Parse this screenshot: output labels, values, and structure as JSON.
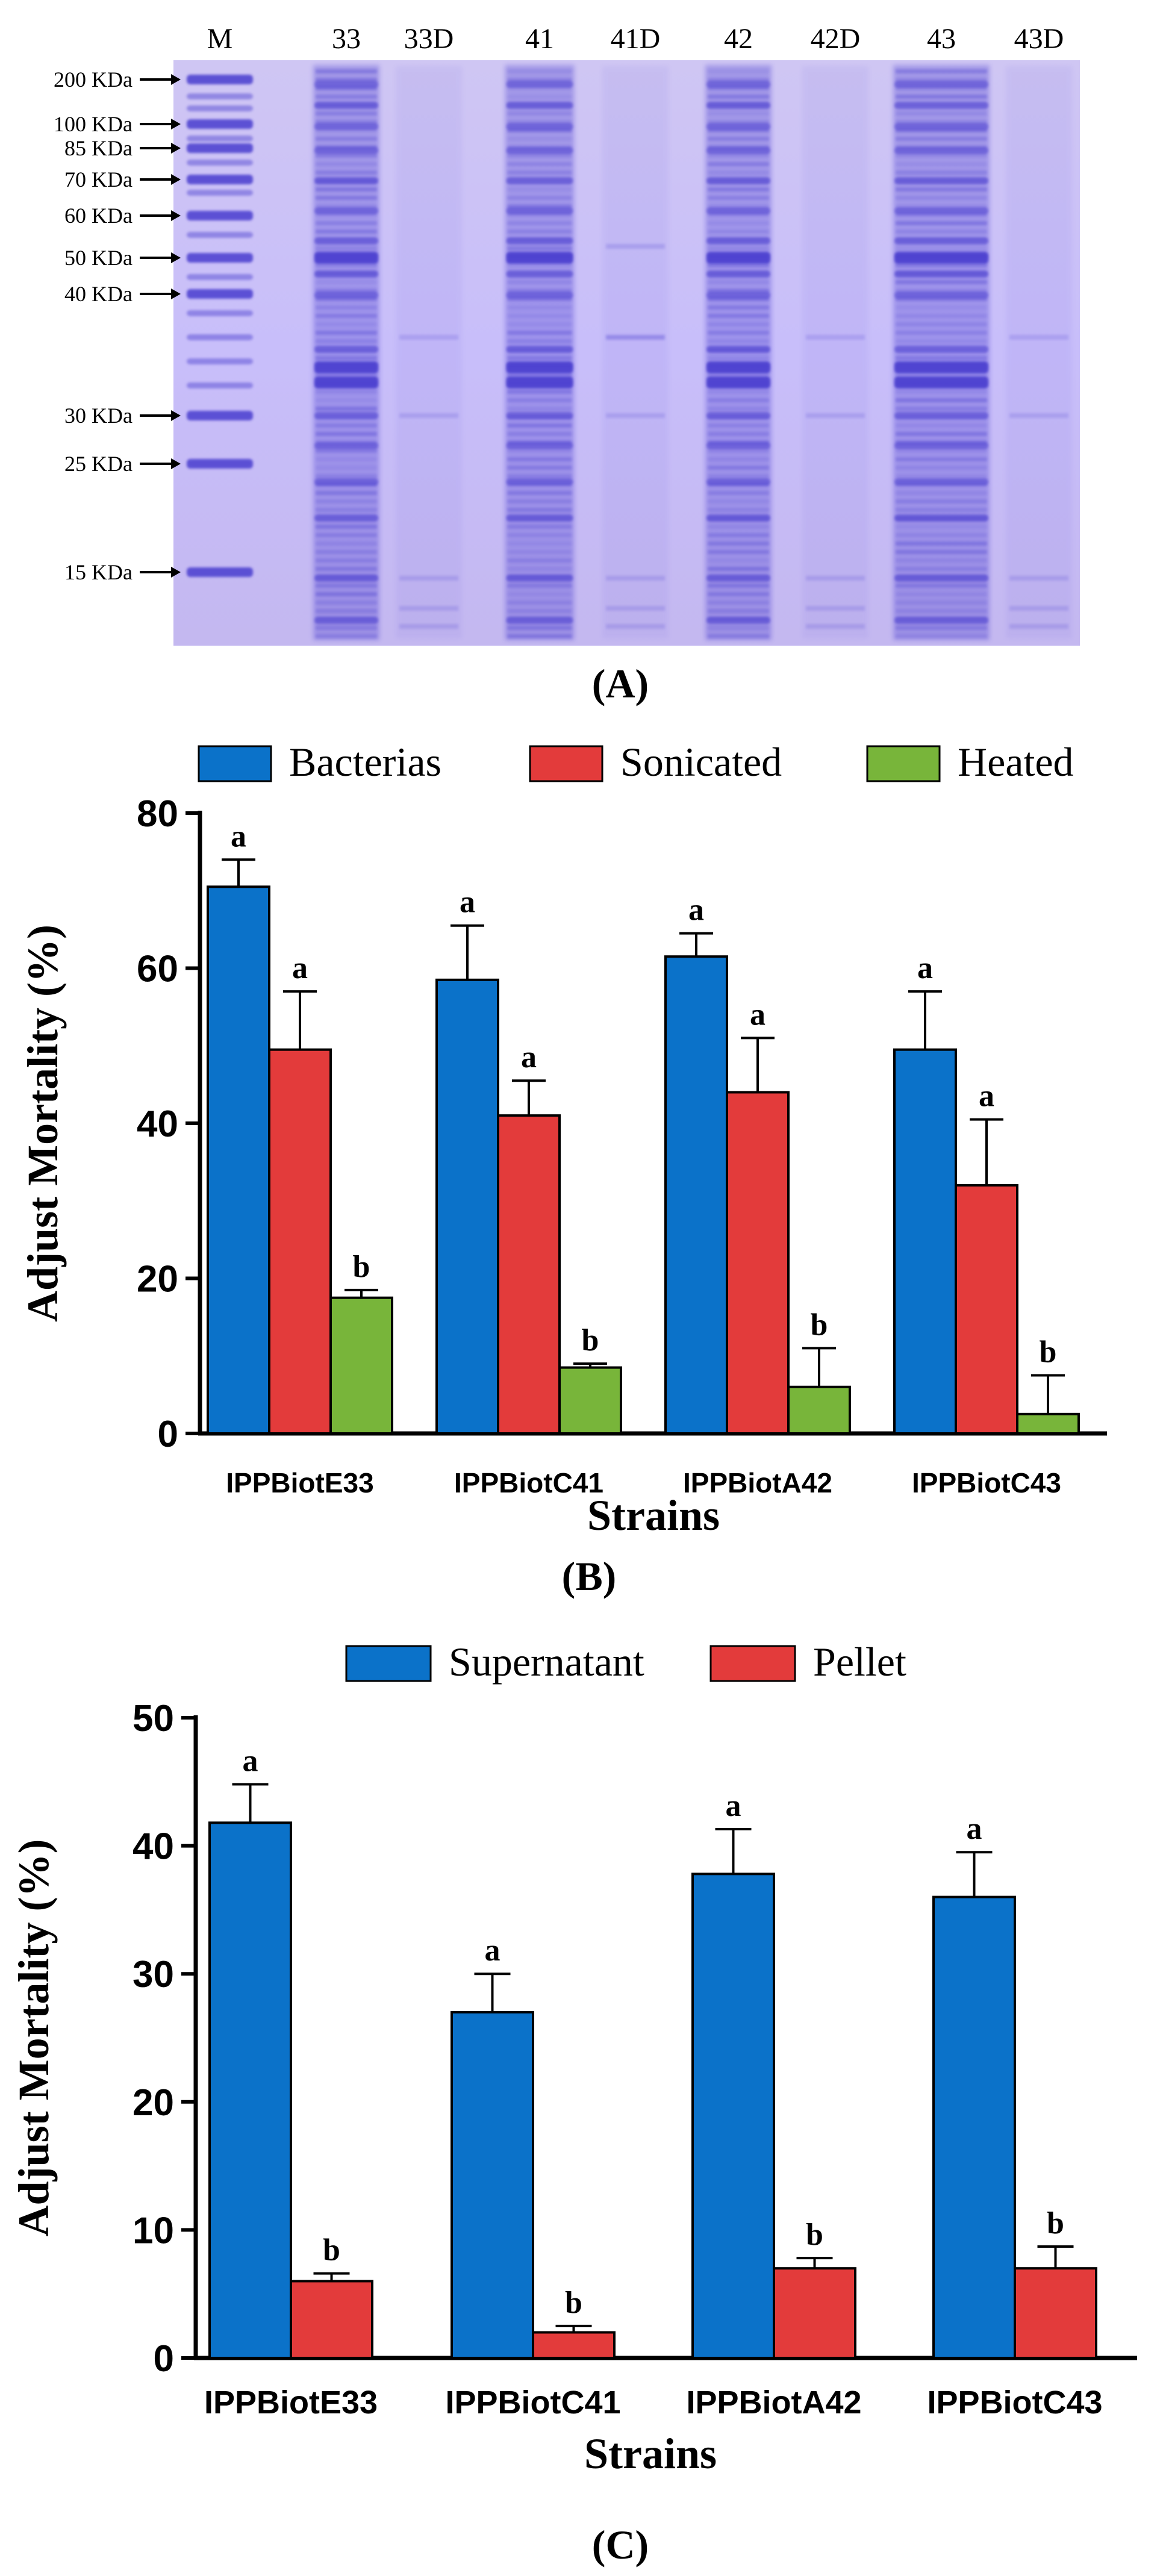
{
  "panel_a": {
    "caption": "(A)",
    "lane_labels": [
      "M",
      "33",
      "33D",
      "41",
      "41D",
      "42",
      "42D",
      "43",
      "43D"
    ],
    "marker_labels": [
      "200 KDa",
      "100 KDa",
      "85 KDa",
      "70 KDa",
      "60 KDa",
      "50 KDa",
      "40 KDa",
      "30 KDa",
      "25 KDa",
      "15 KDa"
    ],
    "gel_color": "#c9bff0",
    "band_color": "#4a3ccf"
  },
  "chart_data": [
    {
      "type": "bar",
      "panel": "B",
      "caption": "(B)",
      "title": "",
      "xlabel": "Strains",
      "ylabel": "Adjust Mortality (%)",
      "ylim": [
        0,
        80
      ],
      "yticks": [
        0,
        20,
        40,
        60,
        80
      ],
      "categories": [
        "IPPBiotE33",
        "IPPBiotC41",
        "IPPBiotA42",
        "IPPBiotC43"
      ],
      "legend_position": "top",
      "series": [
        {
          "name": "Bacterias",
          "color": "#0b72c9",
          "values": [
            70.5,
            58.5,
            61.5,
            49.5
          ],
          "errors": [
            3.5,
            7,
            3,
            7.5
          ],
          "letters": [
            "a",
            "a",
            "a",
            "a"
          ]
        },
        {
          "name": "Sonicated",
          "color": "#e33b3b",
          "values": [
            49.5,
            41,
            44,
            32
          ],
          "errors": [
            7.5,
            4.5,
            7,
            8.5
          ],
          "letters": [
            "a",
            "a",
            "a",
            "a"
          ]
        },
        {
          "name": "Heated",
          "color": "#78b53a",
          "values": [
            17.5,
            8.5,
            6,
            2.5
          ],
          "errors": [
            1,
            0.5,
            5,
            5
          ],
          "letters": [
            "b",
            "b",
            "b",
            "b"
          ]
        }
      ]
    },
    {
      "type": "bar",
      "panel": "C",
      "caption": "(C)",
      "title": "",
      "xlabel": "Strains",
      "ylabel": "Adjust Mortality (%)",
      "ylim": [
        0,
        50
      ],
      "yticks": [
        0,
        10,
        20,
        30,
        40,
        50
      ],
      "categories": [
        "IPPBiotE33",
        "IPPBiotC41",
        "IPPBiotA42",
        "IPPBiotC43"
      ],
      "legend_position": "top",
      "series": [
        {
          "name": "Supernatant",
          "color": "#0b72c9",
          "values": [
            41.8,
            27,
            37.8,
            36
          ],
          "errors": [
            3,
            3,
            3.5,
            3.5
          ],
          "letters": [
            "a",
            "a",
            "a",
            "a"
          ]
        },
        {
          "name": "Pellet",
          "color": "#e33b3b",
          "values": [
            6,
            2,
            7,
            7
          ],
          "errors": [
            0.6,
            0.5,
            0.8,
            1.7
          ],
          "letters": [
            "b",
            "b",
            "b",
            "b"
          ]
        }
      ]
    }
  ]
}
